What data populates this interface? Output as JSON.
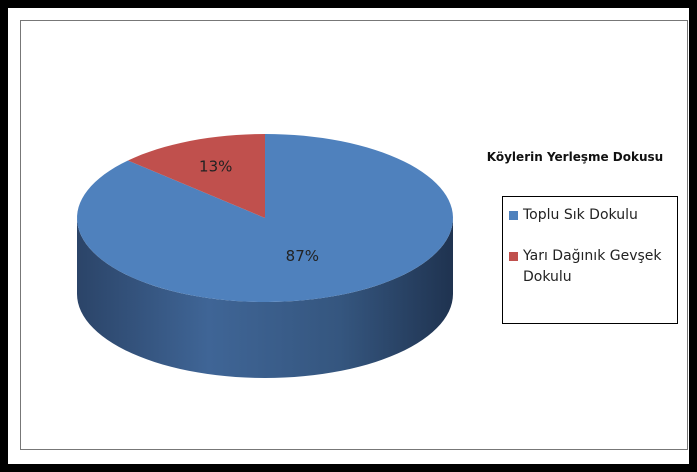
{
  "chart_data": {
    "type": "pie3d",
    "title": "Köylerin Yerleşme Dokusu",
    "series": [
      {
        "name": "Toplu Sık Dokulu",
        "color": "#4f81bd",
        "value": 87,
        "value_label": "87%"
      },
      {
        "name": "Yarı Dağınık Gevşek Dokulu",
        "color": "#c0504d",
        "value": 13,
        "value_label": "13%"
      }
    ],
    "legend": "right"
  }
}
